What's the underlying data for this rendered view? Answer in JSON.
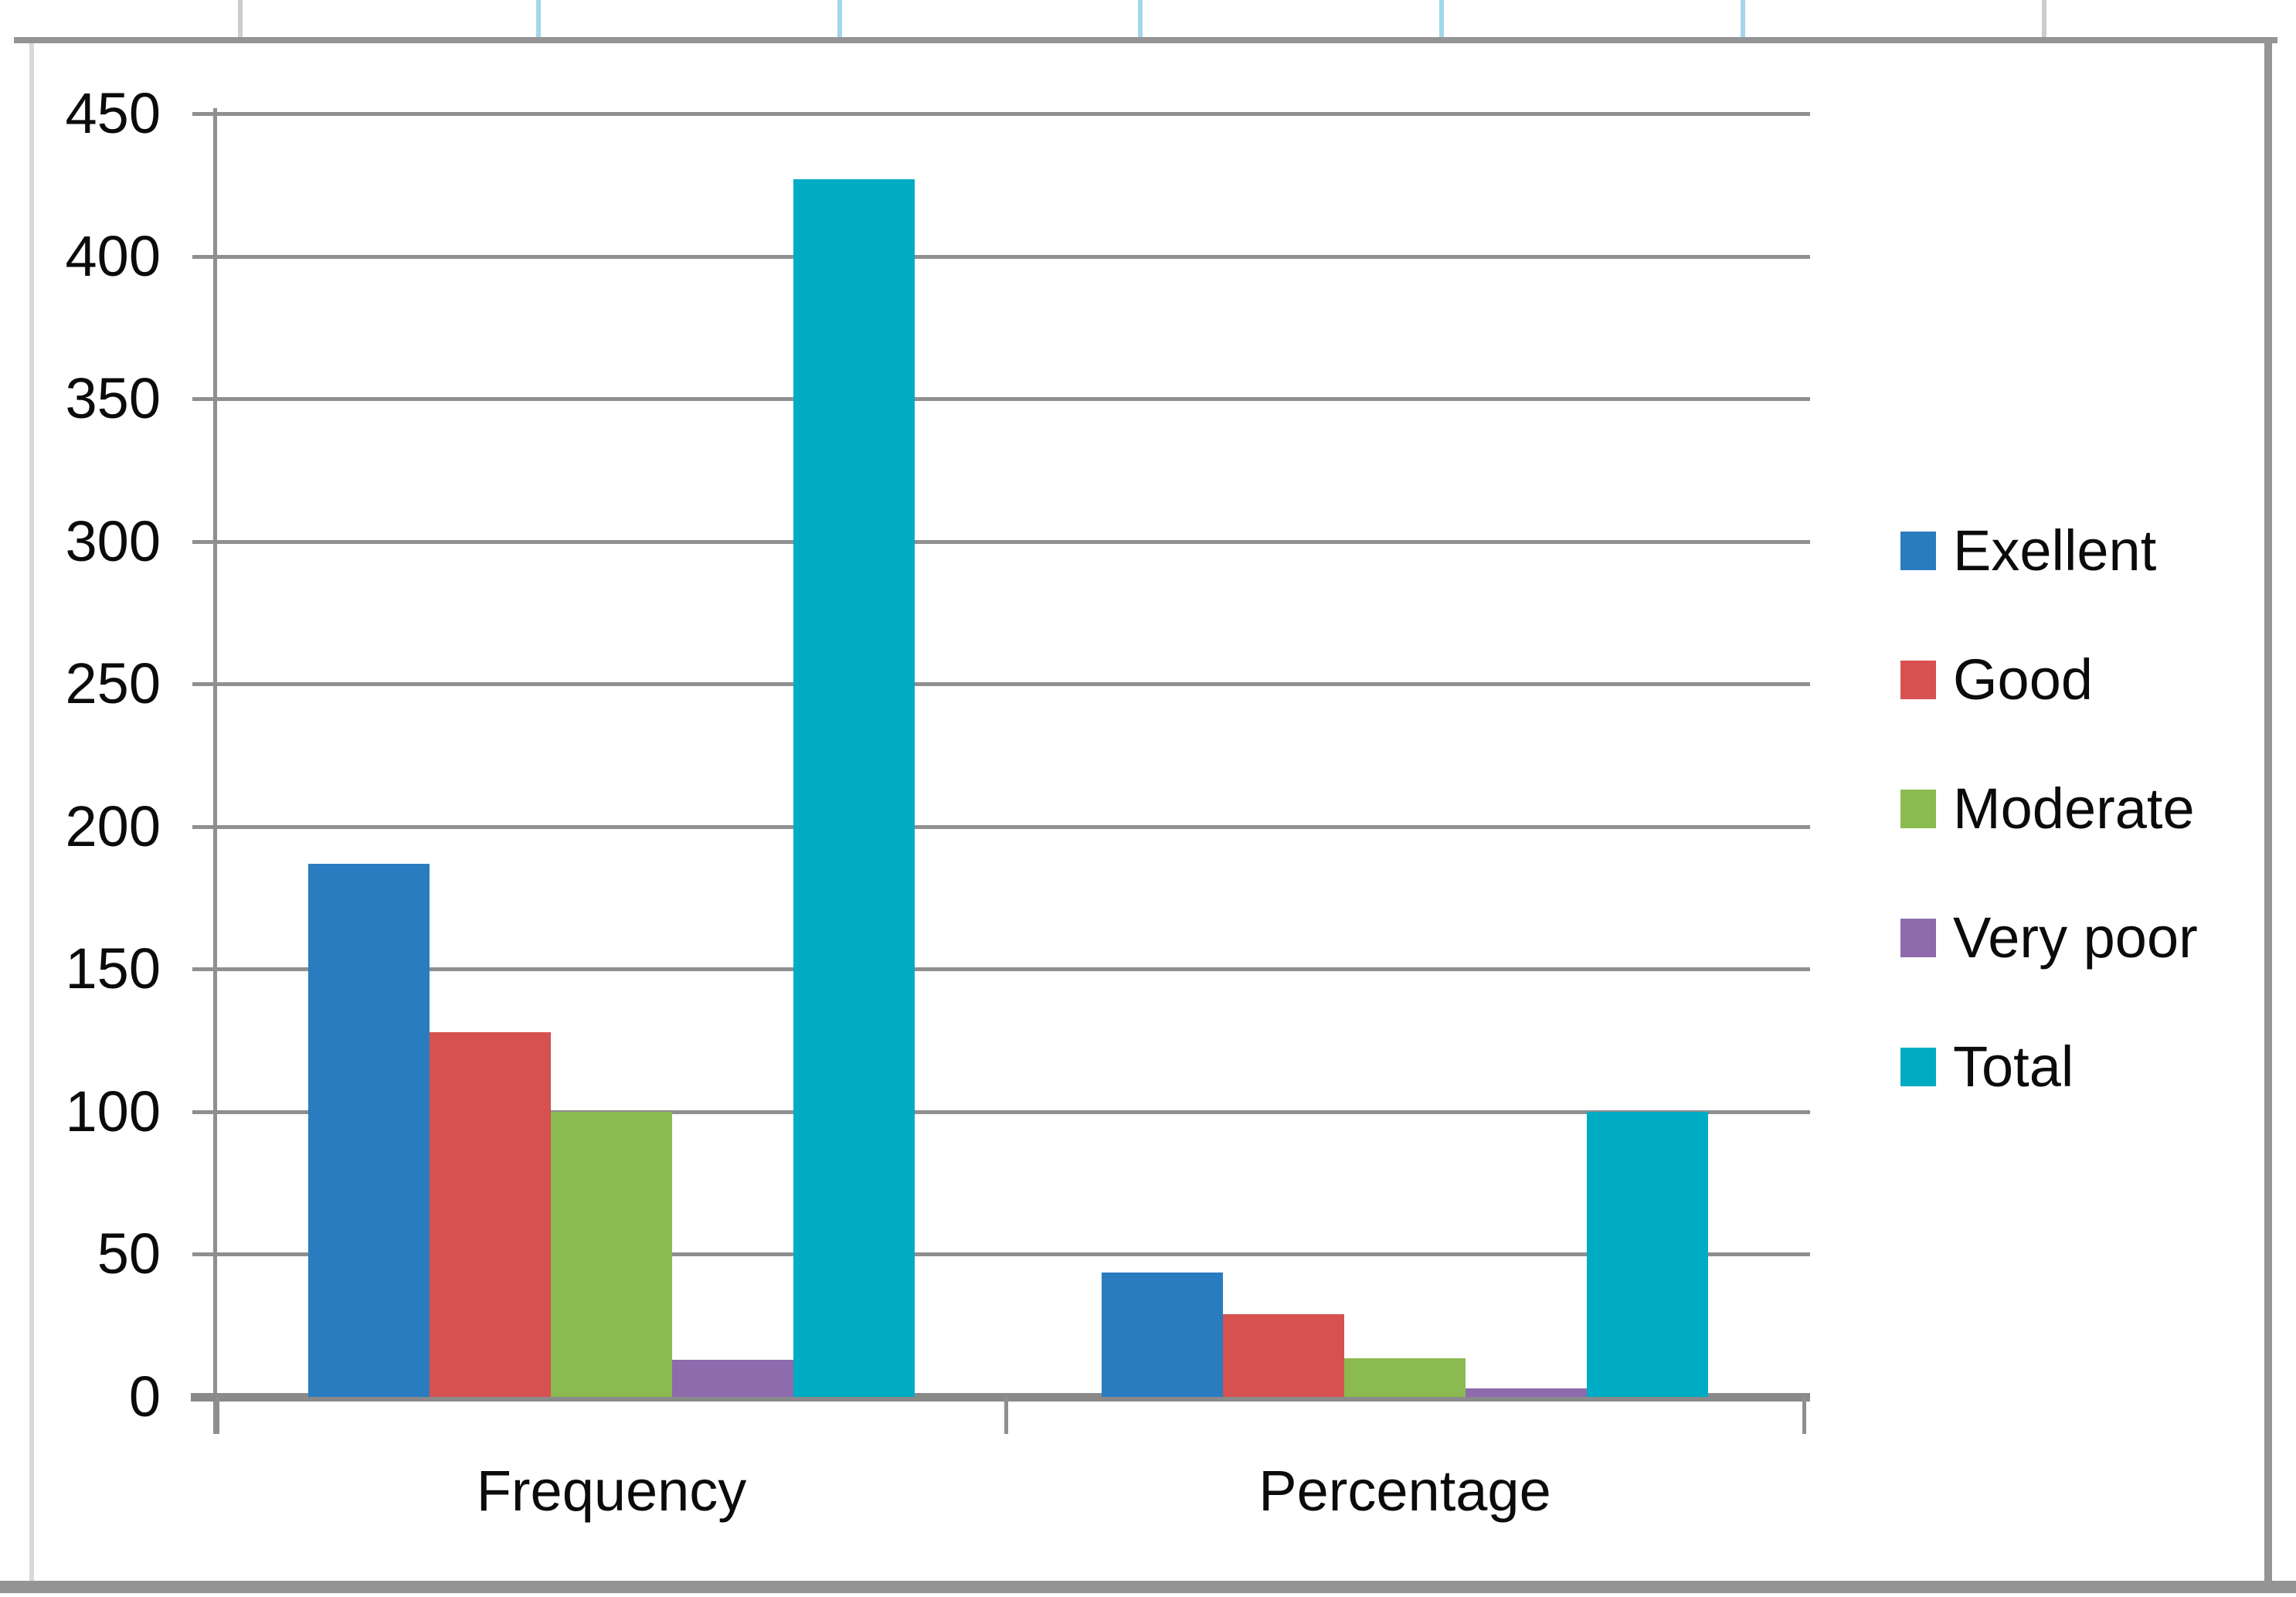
{
  "chart_data": {
    "type": "bar",
    "title": "",
    "xlabel": "",
    "ylabel": "",
    "categories": [
      "Frequency",
      "Percentage"
    ],
    "series": [
      {
        "name": "Exellent",
        "color": "#2a7cc1",
        "values": [
          187,
          43.5
        ]
      },
      {
        "name": "Good",
        "color": "#d65150",
        "values": [
          128,
          29
        ]
      },
      {
        "name": "Moderate",
        "color": "#8bba51",
        "values": [
          100,
          13.5
        ]
      },
      {
        "name": "Very poor",
        "color": "#8d6bad",
        "values": [
          13,
          3
        ]
      },
      {
        "name": "Total",
        "color": "#00abc4",
        "values": [
          427,
          100
        ]
      }
    ],
    "ylim": [
      0,
      450
    ],
    "ytick_step": 50,
    "ytick_labels": [
      "0",
      "50",
      "100",
      "150",
      "200",
      "250",
      "300",
      "350",
      "400",
      "450"
    ],
    "grid": true,
    "legend_position": "right-middle"
  },
  "legend": {
    "items": [
      "Exellent",
      "Good",
      "Moderate",
      "Very poor",
      "Total"
    ]
  },
  "colors": {
    "background": "#ffffff",
    "gridline": "#8f8f8f",
    "axis": "#8a8a8a",
    "text": "#0b0b0b",
    "frame_border": "#949494",
    "frame_border_light": "#d9d9d9",
    "worksheet_tick_blue": "#a3d6ea",
    "worksheet_tick_gray": "#cccccc"
  }
}
